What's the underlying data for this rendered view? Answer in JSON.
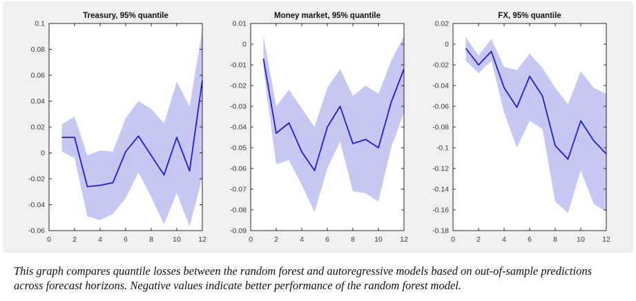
{
  "figure": {
    "background_color": "#f0f0f0",
    "plot_background_color": "#ffffff",
    "line_color": "#1c1cd6",
    "band_color": "#c7c7f3",
    "axis_color": "#262626",
    "tick_label_color": "#3a3a3a",
    "title_color": "#111111"
  },
  "caption": {
    "text": "This graph compares quantile losses between the random forest and autoregressive models based on out-of-sample predictions across forecast horizons. Negative values indicate better performance of the random forest model."
  },
  "chart_data": [
    {
      "type": "line",
      "title": "Treasury, 95% quantile",
      "xlabel": "",
      "ylabel": "",
      "grid": false,
      "legend": null,
      "xlim": [
        0,
        12
      ],
      "ylim": [
        -0.06,
        0.1
      ],
      "xticks": [
        0,
        2,
        4,
        6,
        8,
        10,
        12
      ],
      "xtick_labels": [
        "0",
        "2",
        "4",
        "6",
        "8",
        "10",
        "12"
      ],
      "yticks": [
        0.1,
        0.08,
        0.06,
        0.04,
        0.02,
        0,
        -0.02,
        -0.04,
        -0.06
      ],
      "ytick_labels": [
        "0.1",
        "0.08",
        "0.06",
        "0.04",
        "0.02",
        "0",
        "-0.02",
        "-0.04",
        "-0.06"
      ],
      "x": [
        1,
        2,
        3,
        4,
        5,
        6,
        7,
        8,
        9,
        10,
        11,
        12
      ],
      "series": [
        {
          "name": "quantile-loss-difference",
          "role": "line",
          "values": [
            0.012,
            0.012,
            -0.026,
            -0.025,
            -0.023,
            0.001,
            0.013,
            -0.002,
            -0.017,
            0.012,
            -0.014,
            0.056
          ]
        },
        {
          "name": "confidence-band-upper",
          "role": "band-upper",
          "values": [
            0.022,
            0.028,
            -0.002,
            0.002,
            0.001,
            0.027,
            0.04,
            0.034,
            0.023,
            0.055,
            0.036,
            0.095
          ]
        },
        {
          "name": "confidence-band-lower",
          "role": "band-lower",
          "values": [
            0.001,
            -0.004,
            -0.049,
            -0.052,
            -0.047,
            -0.035,
            -0.015,
            -0.034,
            -0.055,
            -0.031,
            -0.057,
            -0.019
          ]
        }
      ]
    },
    {
      "type": "line",
      "title": "Money market, 95% quantile",
      "xlabel": "",
      "ylabel": "",
      "grid": false,
      "legend": null,
      "xlim": [
        0,
        12
      ],
      "ylim": [
        -0.09,
        0.01
      ],
      "xticks": [
        0,
        2,
        4,
        6,
        8,
        10,
        12
      ],
      "xtick_labels": [
        "0",
        "2",
        "4",
        "6",
        "8",
        "10",
        "12"
      ],
      "yticks": [
        0.01,
        0,
        -0.01,
        -0.02,
        -0.03,
        -0.04,
        -0.05,
        -0.06,
        -0.07,
        -0.08,
        -0.09
      ],
      "ytick_labels": [
        "0.01",
        "0",
        "-0.01",
        "-0.02",
        "-0.03",
        "-0.04",
        "-0.05",
        "-0.06",
        "-0.07",
        "-0.08",
        "-0.09"
      ],
      "x": [
        1,
        2,
        3,
        4,
        5,
        6,
        7,
        8,
        9,
        10,
        11,
        12
      ],
      "series": [
        {
          "name": "quantile-loss-difference",
          "role": "line",
          "values": [
            -0.007,
            -0.043,
            -0.038,
            -0.052,
            -0.061,
            -0.04,
            -0.03,
            -0.048,
            -0.046,
            -0.05,
            -0.028,
            -0.012
          ]
        },
        {
          "name": "confidence-band-upper",
          "role": "band-upper",
          "values": [
            0.004,
            -0.03,
            -0.022,
            -0.031,
            -0.04,
            -0.021,
            -0.012,
            -0.025,
            -0.02,
            -0.024,
            -0.008,
            0.004
          ]
        },
        {
          "name": "confidence-band-lower",
          "role": "band-lower",
          "values": [
            -0.012,
            -0.058,
            -0.056,
            -0.068,
            -0.081,
            -0.06,
            -0.047,
            -0.071,
            -0.072,
            -0.076,
            -0.05,
            -0.033
          ]
        }
      ]
    },
    {
      "type": "line",
      "title": "FX, 95% quantile",
      "xlabel": "",
      "ylabel": "",
      "grid": false,
      "legend": null,
      "xlim": [
        0,
        12
      ],
      "ylim": [
        -0.18,
        0.02
      ],
      "xticks": [
        0,
        2,
        4,
        6,
        8,
        10,
        12
      ],
      "xtick_labels": [
        "0",
        "2",
        "4",
        "6",
        "8",
        "10",
        "12"
      ],
      "yticks": [
        0.02,
        0,
        -0.02,
        -0.04,
        -0.06,
        -0.08,
        -0.1,
        -0.12,
        -0.14,
        -0.16,
        -0.18
      ],
      "ytick_labels": [
        "0.02",
        "0",
        "-0.02",
        "-0.04",
        "-0.06",
        "-0.08",
        "-0.1",
        "-0.12",
        "-0.14",
        "-0.16",
        "-0.18"
      ],
      "x": [
        1,
        2,
        3,
        4,
        5,
        6,
        7,
        8,
        9,
        10,
        11,
        12
      ],
      "series": [
        {
          "name": "quantile-loss-difference",
          "role": "line",
          "values": [
            -0.004,
            -0.02,
            -0.007,
            -0.042,
            -0.061,
            -0.031,
            -0.05,
            -0.098,
            -0.111,
            -0.074,
            -0.093,
            -0.106
          ]
        },
        {
          "name": "confidence-band-upper",
          "role": "band-upper",
          "values": [
            0.007,
            -0.011,
            0.005,
            -0.022,
            -0.025,
            -0.009,
            -0.023,
            -0.042,
            -0.058,
            -0.026,
            -0.042,
            -0.048
          ]
        },
        {
          "name": "confidence-band-lower",
          "role": "band-lower",
          "values": [
            -0.016,
            -0.028,
            -0.016,
            -0.066,
            -0.1,
            -0.074,
            -0.082,
            -0.152,
            -0.163,
            -0.122,
            -0.154,
            -0.162
          ]
        }
      ]
    }
  ]
}
